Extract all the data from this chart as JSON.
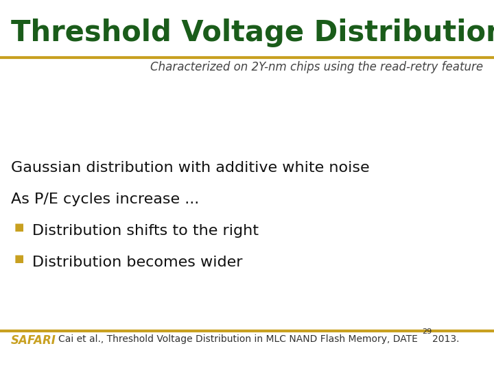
{
  "title": "Threshold Voltage Distribution Model",
  "subtitle": "Characterized on 2Y-nm chips using the read-retry feature",
  "title_color": "#1a5c1a",
  "subtitle_color": "#444444",
  "line_color_gold": "#c8a020",
  "background_color": "#ffffff",
  "body_lines": [
    "Gaussian distribution with additive white noise",
    "As P/E cycles increase ..."
  ],
  "bullet_lines": [
    "Distribution shifts to the right",
    "Distribution becomes wider"
  ],
  "bullet_color": "#c8a020",
  "body_text_color": "#111111",
  "footer_safari_color": "#c8a020",
  "footer_text": "Cai et al., Threshold Voltage Distribution in MLC NAND Flash Memory, DATE",
  "footer_superscript": "29",
  "footer_year": "2013.",
  "footer_text_color": "#333333",
  "title_fontsize": 30,
  "subtitle_fontsize": 12,
  "body_fontsize": 16,
  "bullet_fontsize": 16,
  "footer_fontsize": 10,
  "footer_safari_fontsize": 12
}
